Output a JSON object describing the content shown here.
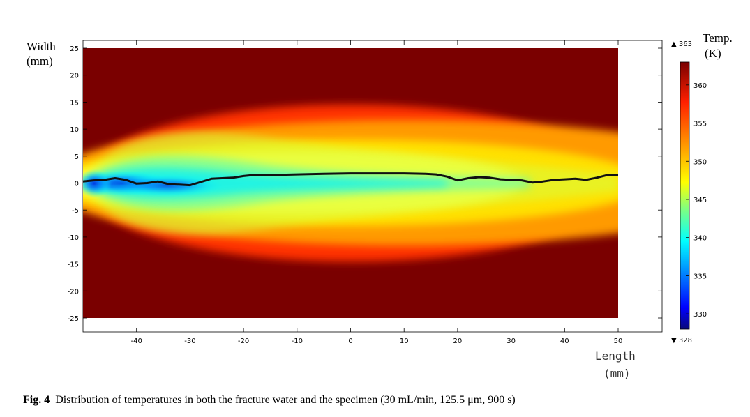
{
  "figure": {
    "caption_label": "Fig. 4",
    "caption_text": "Distribution of temperatures in both the fracture water and the specimen (30 mL/min, 125.5  μm, 900 s)"
  },
  "chart_data": {
    "type": "heatmap",
    "title": "",
    "ylabel_line1": "Width",
    "ylabel_line2": "(mm)",
    "xlabel_line1": "Length",
    "xlabel_line2": "(mm)",
    "xlim": [
      -50,
      50
    ],
    "ylim": [
      -25,
      25
    ],
    "x_ticks": [
      -40,
      -30,
      -20,
      -10,
      0,
      10,
      20,
      30,
      40,
      50
    ],
    "y_ticks": [
      25,
      20,
      15,
      10,
      5,
      0,
      -5,
      -10,
      -15,
      -20,
      -25
    ],
    "colorbar": {
      "title_line1": "Temp.",
      "title_line2": "(K)",
      "min": 328,
      "max": 363,
      "min_label": "▼ 328",
      "max_label": "▲ 363",
      "ticks": [
        360,
        355,
        350,
        345,
        340,
        335,
        330
      ],
      "colormap": "rainbow (dark blue → cyan → yellow → red → dark red)"
    },
    "fracture_line": {
      "x": [
        -50,
        -48,
        -46,
        -44,
        -42,
        -40,
        -38,
        -36,
        -34,
        -32,
        -30,
        -28,
        -26,
        -24,
        -22,
        -20,
        -18,
        -16,
        -14,
        -10,
        -5,
        0,
        5,
        10,
        14,
        16,
        18,
        20,
        22,
        24,
        26,
        28,
        30,
        32,
        34,
        36,
        38,
        40,
        42,
        44,
        46,
        48,
        50
      ],
      "y": [
        0.3,
        0.5,
        0.6,
        0.9,
        0.6,
        -0.1,
        0.0,
        0.3,
        -0.2,
        -0.3,
        -0.4,
        0.2,
        0.8,
        0.9,
        1.0,
        1.3,
        1.5,
        1.5,
        1.5,
        1.6,
        1.7,
        1.8,
        1.8,
        1.8,
        1.7,
        1.6,
        1.2,
        0.5,
        0.9,
        1.1,
        1.0,
        0.7,
        0.6,
        0.5,
        0.1,
        0.3,
        0.6,
        0.7,
        0.8,
        0.6,
        1.0,
        1.5,
        1.5
      ]
    }
  }
}
